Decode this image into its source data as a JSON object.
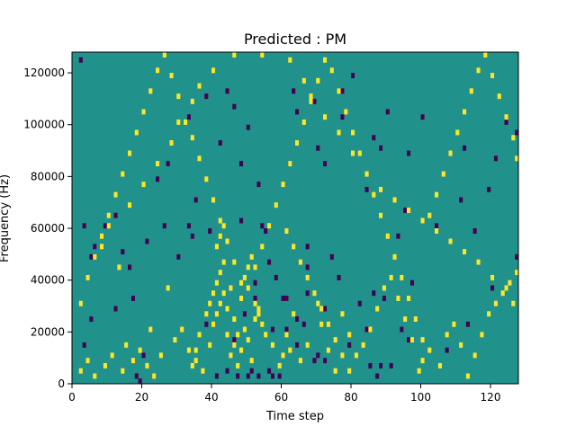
{
  "chart_data": {
    "type": "heatmap",
    "title": "Predicted : PM",
    "xlabel": "Time step",
    "ylabel": "Frequency (Hz)",
    "xlim": [
      0,
      128
    ],
    "ylim": [
      0,
      128000
    ],
    "x_ticks": [
      0,
      20,
      40,
      60,
      80,
      100,
      120
    ],
    "y_ticks": [
      0,
      20000,
      40000,
      60000,
      80000,
      100000,
      120000
    ],
    "x_tick_labels": [
      "0",
      "20",
      "40",
      "60",
      "80",
      "100",
      "120"
    ],
    "y_tick_labels": [
      "0",
      "20000",
      "40000",
      "60000",
      "80000",
      "100000",
      "120000"
    ],
    "grid": false,
    "colormap": "viridis",
    "colors": {
      "background": "#21918c",
      "low": "#440154",
      "high": "#fde725"
    },
    "resolution": {
      "time_steps": 128,
      "freq_bins": 64
    },
    "cells_low": [
      [
        18,
        2
      ],
      [
        19,
        1
      ],
      [
        23,
        3
      ],
      [
        41,
        3
      ],
      [
        44,
        4
      ],
      [
        47,
        2
      ],
      [
        50,
        3
      ],
      [
        51,
        5
      ],
      [
        53,
        2
      ],
      [
        56,
        4
      ],
      [
        57,
        2
      ],
      [
        59,
        3
      ],
      [
        69,
        8
      ],
      [
        70,
        10
      ],
      [
        88,
        7
      ],
      [
        87,
        3
      ],
      [
        3,
        14
      ],
      [
        5,
        24
      ],
      [
        12,
        28
      ],
      [
        17,
        33
      ],
      [
        30,
        48
      ],
      [
        33,
        60
      ],
      [
        52,
        38
      ],
      [
        56,
        46
      ],
      [
        58,
        40
      ],
      [
        61,
        32
      ],
      [
        64,
        24
      ],
      [
        67,
        34
      ],
      [
        72,
        28
      ],
      [
        74,
        48
      ],
      [
        76,
        40
      ],
      [
        84,
        20
      ],
      [
        86,
        34
      ],
      [
        89,
        32
      ],
      [
        93,
        56
      ],
      [
        94,
        20
      ],
      [
        95,
        66
      ],
      [
        97,
        38
      ],
      [
        3,
        60
      ],
      [
        5,
        49
      ],
      [
        6,
        52
      ],
      [
        9,
        61
      ],
      [
        12,
        64
      ],
      [
        16,
        44
      ],
      [
        21,
        54
      ],
      [
        24,
        78
      ],
      [
        26,
        60
      ],
      [
        34,
        56
      ],
      [
        39,
        58
      ],
      [
        48,
        84
      ],
      [
        50,
        98
      ],
      [
        53,
        76
      ],
      [
        55,
        58
      ],
      [
        62,
        84
      ],
      [
        63,
        112
      ],
      [
        64,
        104
      ],
      [
        67,
        52
      ],
      [
        69,
        108
      ],
      [
        70,
        90
      ],
      [
        72,
        84
      ],
      [
        77,
        102
      ],
      [
        80,
        118
      ],
      [
        84,
        74
      ],
      [
        86,
        94
      ],
      [
        88,
        90
      ],
      [
        90,
        104
      ],
      [
        96,
        88
      ],
      [
        100,
        102
      ],
      [
        104,
        60
      ],
      [
        111,
        70
      ],
      [
        112,
        90
      ],
      [
        115,
        58
      ],
      [
        119,
        74
      ],
      [
        121,
        86
      ],
      [
        124,
        100
      ],
      [
        127,
        96
      ],
      [
        129,
        48
      ],
      [
        42,
        92
      ],
      [
        44,
        112
      ],
      [
        60,
        32
      ],
      [
        61,
        20
      ],
      [
        77,
        112
      ],
      [
        54,
        60
      ],
      [
        48,
        62
      ],
      [
        38,
        110
      ],
      [
        14,
        50
      ],
      [
        27,
        84
      ],
      [
        35,
        70
      ],
      [
        33,
        102
      ],
      [
        67,
        44
      ],
      [
        72,
        8
      ],
      [
        79,
        14
      ],
      [
        91,
        6
      ],
      [
        96,
        16
      ],
      [
        107,
        12
      ],
      [
        113,
        22
      ],
      [
        120,
        36
      ],
      [
        64,
        14
      ],
      [
        66,
        22
      ],
      [
        57,
        20
      ],
      [
        46,
        16
      ],
      [
        49,
        26
      ],
      [
        52,
        32
      ],
      [
        20,
        10
      ],
      [
        38,
        22
      ],
      [
        2,
        124
      ],
      [
        46,
        106
      ],
      [
        82,
        30
      ],
      [
        85,
        6
      ]
    ],
    "cells_high": [
      [
        2,
        4
      ],
      [
        4,
        8
      ],
      [
        6,
        2
      ],
      [
        9,
        6
      ],
      [
        11,
        10
      ],
      [
        14,
        4
      ],
      [
        17,
        8
      ],
      [
        19,
        12
      ],
      [
        21,
        6
      ],
      [
        23,
        2
      ],
      [
        25,
        10
      ],
      [
        29,
        16
      ],
      [
        31,
        20
      ],
      [
        33,
        12
      ],
      [
        35,
        8
      ],
      [
        37,
        4
      ],
      [
        39,
        14
      ],
      [
        40,
        22
      ],
      [
        41,
        26
      ],
      [
        42,
        30
      ],
      [
        43,
        34
      ],
      [
        44,
        18
      ],
      [
        45,
        10
      ],
      [
        46,
        14
      ],
      [
        47,
        6
      ],
      [
        48,
        12
      ],
      [
        49,
        20
      ],
      [
        50,
        16
      ],
      [
        51,
        8
      ],
      [
        52,
        24
      ],
      [
        53,
        28
      ],
      [
        55,
        18
      ],
      [
        57,
        14
      ],
      [
        59,
        6
      ],
      [
        60,
        10
      ],
      [
        61,
        18
      ],
      [
        62,
        12
      ],
      [
        63,
        26
      ],
      [
        65,
        8
      ],
      [
        67,
        14
      ],
      [
        70,
        30
      ],
      [
        71,
        22
      ],
      [
        73,
        12
      ],
      [
        75,
        4
      ],
      [
        77,
        26
      ],
      [
        79,
        18
      ],
      [
        81,
        10
      ],
      [
        83,
        14
      ],
      [
        85,
        20
      ],
      [
        87,
        28
      ],
      [
        89,
        36
      ],
      [
        91,
        40
      ],
      [
        93,
        32
      ],
      [
        95,
        24
      ],
      [
        97,
        16
      ],
      [
        99,
        4
      ],
      [
        100,
        8
      ],
      [
        102,
        12
      ],
      [
        105,
        6
      ],
      [
        107,
        18
      ],
      [
        109,
        22
      ],
      [
        111,
        14
      ],
      [
        113,
        2
      ],
      [
        115,
        10
      ],
      [
        117,
        18
      ],
      [
        119,
        26
      ],
      [
        121,
        30
      ],
      [
        123,
        34
      ],
      [
        125,
        38
      ],
      [
        127,
        42
      ],
      [
        2,
        30
      ],
      [
        4,
        40
      ],
      [
        6,
        48
      ],
      [
        8,
        56
      ],
      [
        10,
        64
      ],
      [
        12,
        72
      ],
      [
        14,
        80
      ],
      [
        16,
        88
      ],
      [
        18,
        96
      ],
      [
        20,
        104
      ],
      [
        22,
        112
      ],
      [
        24,
        120
      ],
      [
        26,
        126
      ],
      [
        28,
        118
      ],
      [
        30,
        110
      ],
      [
        32,
        100
      ],
      [
        34,
        94
      ],
      [
        36,
        86
      ],
      [
        38,
        78
      ],
      [
        40,
        70
      ],
      [
        42,
        62
      ],
      [
        44,
        54
      ],
      [
        46,
        46
      ],
      [
        48,
        38
      ],
      [
        50,
        36
      ],
      [
        52,
        44
      ],
      [
        54,
        52
      ],
      [
        56,
        60
      ],
      [
        58,
        68
      ],
      [
        60,
        76
      ],
      [
        62,
        84
      ],
      [
        64,
        92
      ],
      [
        66,
        100
      ],
      [
        68,
        108
      ],
      [
        70,
        116
      ],
      [
        72,
        124
      ],
      [
        74,
        120
      ],
      [
        76,
        112
      ],
      [
        78,
        104
      ],
      [
        80,
        96
      ],
      [
        82,
        88
      ],
      [
        84,
        80
      ],
      [
        86,
        72
      ],
      [
        88,
        64
      ],
      [
        90,
        56
      ],
      [
        92,
        48
      ],
      [
        94,
        40
      ],
      [
        96,
        32
      ],
      [
        98,
        24
      ],
      [
        100,
        16
      ],
      [
        102,
        64
      ],
      [
        104,
        72
      ],
      [
        106,
        80
      ],
      [
        108,
        88
      ],
      [
        110,
        96
      ],
      [
        112,
        104
      ],
      [
        114,
        112
      ],
      [
        116,
        120
      ],
      [
        118,
        126
      ],
      [
        120,
        118
      ],
      [
        122,
        110
      ],
      [
        124,
        102
      ],
      [
        126,
        94
      ],
      [
        128,
        86
      ],
      [
        41,
        38
      ],
      [
        42,
        42
      ],
      [
        43,
        46
      ],
      [
        41,
        52
      ],
      [
        42,
        56
      ],
      [
        43,
        60
      ],
      [
        45,
        36
      ],
      [
        44,
        28
      ],
      [
        46,
        24
      ],
      [
        47,
        18
      ],
      [
        48,
        32
      ],
      [
        49,
        40
      ],
      [
        50,
        44
      ],
      [
        51,
        48
      ],
      [
        52,
        30
      ],
      [
        53,
        26
      ],
      [
        54,
        22
      ],
      [
        40,
        34
      ],
      [
        39,
        30
      ],
      [
        38,
        26
      ],
      [
        36,
        18
      ],
      [
        35,
        12
      ],
      [
        34,
        6
      ],
      [
        15,
        14
      ],
      [
        22,
        20
      ],
      [
        27,
        36
      ],
      [
        13,
        44
      ],
      [
        8,
        52
      ],
      [
        10,
        60
      ],
      [
        16,
        68
      ],
      [
        20,
        76
      ],
      [
        24,
        84
      ],
      [
        28,
        92
      ],
      [
        30,
        100
      ],
      [
        34,
        108
      ],
      [
        36,
        114
      ],
      [
        40,
        120
      ],
      [
        46,
        126
      ],
      [
        54,
        128
      ],
      [
        62,
        124
      ],
      [
        66,
        116
      ],
      [
        68,
        110
      ],
      [
        72,
        102
      ],
      [
        76,
        96
      ],
      [
        80,
        88
      ],
      [
        84,
        80
      ],
      [
        88,
        74
      ],
      [
        92,
        70
      ],
      [
        96,
        66
      ],
      [
        100,
        62
      ],
      [
        104,
        58
      ],
      [
        108,
        54
      ],
      [
        112,
        50
      ],
      [
        116,
        46
      ],
      [
        120,
        40
      ],
      [
        124,
        36
      ],
      [
        126,
        30
      ],
      [
        61,
        58
      ],
      [
        63,
        52
      ],
      [
        65,
        46
      ],
      [
        67,
        40
      ],
      [
        69,
        34
      ],
      [
        71,
        28
      ],
      [
        73,
        22
      ],
      [
        75,
        16
      ],
      [
        77,
        10
      ],
      [
        79,
        4
      ]
    ]
  }
}
